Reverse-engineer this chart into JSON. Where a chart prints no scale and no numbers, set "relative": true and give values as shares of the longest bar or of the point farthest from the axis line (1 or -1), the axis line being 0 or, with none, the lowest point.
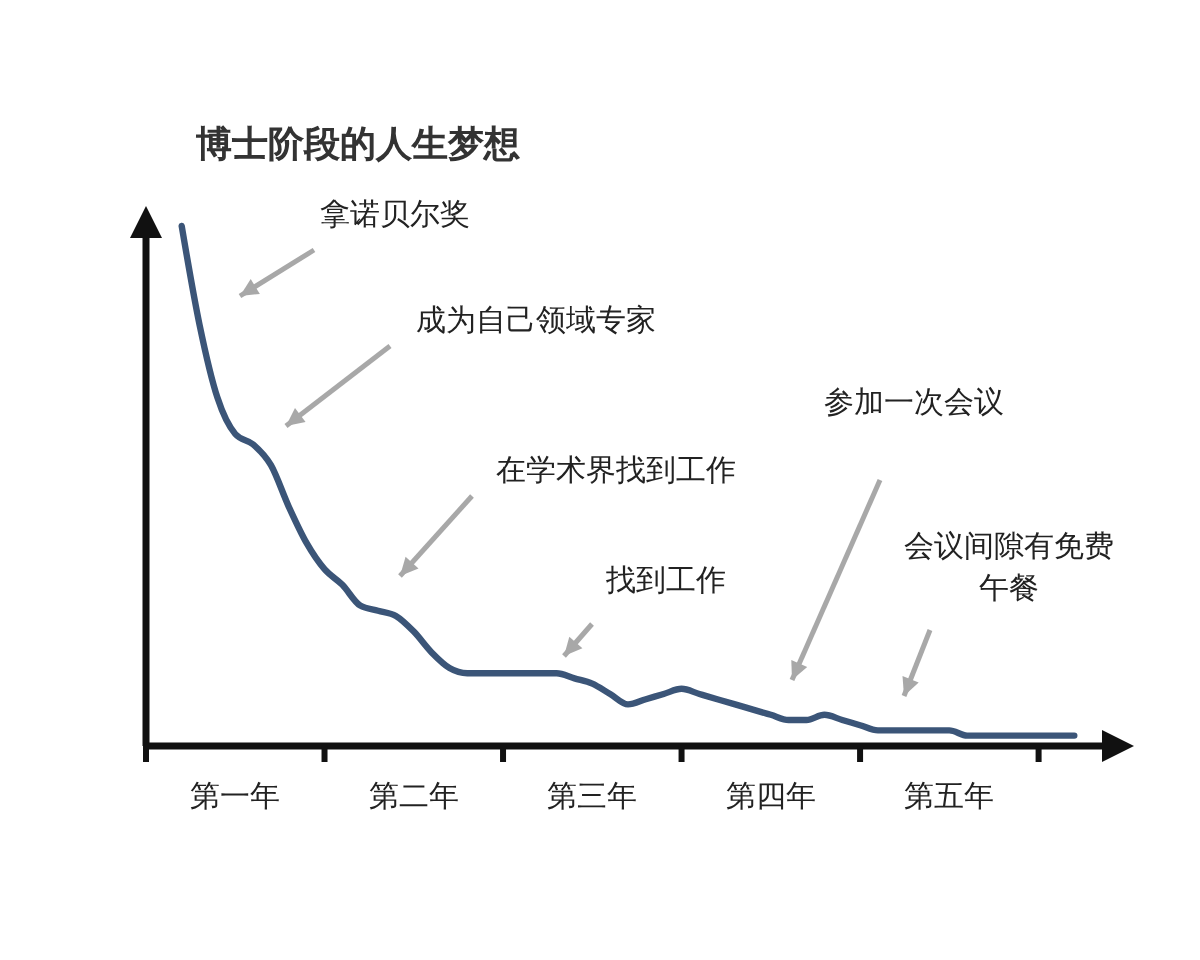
{
  "chart_data": {
    "type": "line",
    "title": "博士阶段的人生梦想",
    "relative": true,
    "categories": [
      null,
      null,
      null,
      null,
      null,
      "第一年",
      null,
      null,
      null,
      null,
      null,
      null,
      null,
      null,
      null,
      "第二年",
      null,
      null,
      null,
      null,
      null,
      null,
      null,
      null,
      null,
      "第三年",
      null,
      null,
      null,
      null,
      null,
      null,
      null,
      null,
      null,
      "第四年",
      null,
      null,
      null,
      null,
      null,
      null,
      null,
      null,
      null,
      "第五年",
      null,
      null,
      null,
      null,
      null,
      null,
      null,
      null
    ],
    "series": [
      {
        "color": "#3b5578",
        "values": [
          null,
          null,
          1.0,
          0.81,
          0.67,
          0.6,
          0.58,
          0.54,
          0.46,
          0.39,
          0.34,
          0.31,
          0.27,
          0.26,
          0.25,
          0.22,
          0.18,
          0.15,
          0.14,
          0.14,
          0.14,
          0.14,
          0.14,
          0.14,
          0.13,
          0.12,
          0.1,
          0.08,
          0.09,
          0.1,
          0.11,
          0.1,
          0.09,
          0.08,
          0.07,
          0.06,
          0.05,
          0.05,
          0.06,
          0.05,
          0.04,
          0.03,
          0.03,
          0.03,
          0.03,
          0.03,
          0.02,
          0.02,
          0.02,
          0.02,
          0.02,
          0.02,
          0.02,
          null
        ]
      }
    ],
    "annotations": [
      "拿诺贝尔奖",
      "成为自己领域专家",
      "在学术界找到工作",
      "找到工作",
      "参加一次会议",
      "会议间隙有免费午餐"
    ]
  }
}
